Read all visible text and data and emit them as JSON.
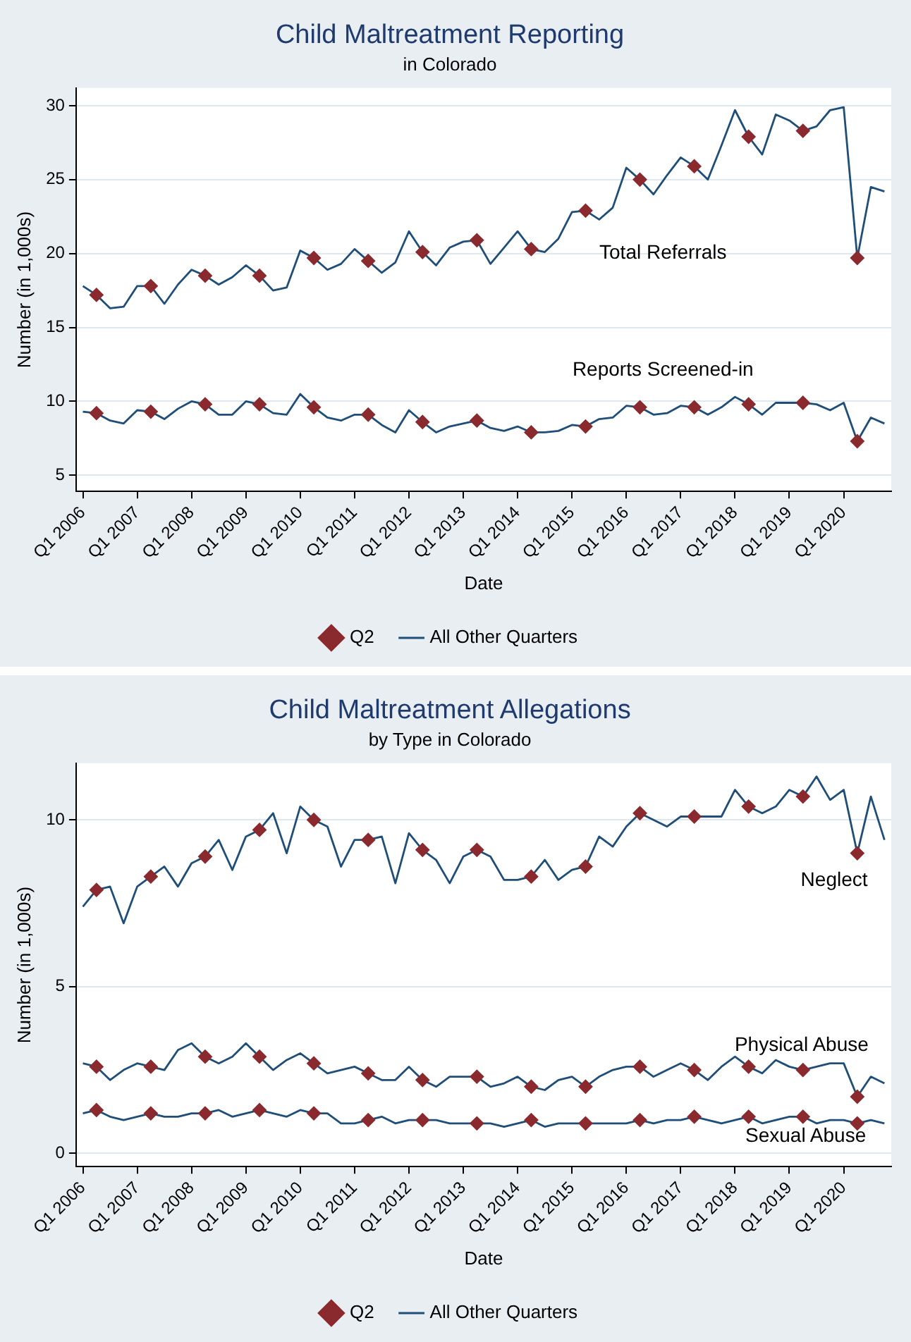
{
  "chart_data": [
    {
      "type": "line",
      "title": "Child Maltreatment Reporting",
      "subtitle": "in Colorado",
      "xlabel": "Date",
      "ylabel": "Number (in 1,000s)",
      "categories": [
        "Q1 2006",
        null,
        null,
        null,
        "Q1 2007",
        null,
        null,
        null,
        "Q1 2008",
        null,
        null,
        null,
        "Q1 2009",
        null,
        null,
        null,
        "Q1 2010",
        null,
        null,
        null,
        "Q1 2011",
        null,
        null,
        null,
        "Q1 2012",
        null,
        null,
        null,
        "Q1 2013",
        null,
        null,
        null,
        "Q1 2014",
        null,
        null,
        null,
        "Q1 2015",
        null,
        null,
        null,
        "Q1 2016",
        null,
        null,
        null,
        "Q1 2017",
        null,
        null,
        null,
        "Q1 2018",
        null,
        null,
        null,
        "Q1 2019",
        null,
        null,
        null,
        "Q1 2020",
        null,
        null,
        null
      ],
      "series": [
        {
          "name": "All Other Quarters",
          "color": "#1f4e79",
          "marker": "none",
          "values": [
            17.8,
            17.2,
            16.3,
            16.4,
            17.8,
            17.8,
            16.6,
            17.9,
            18.9,
            18.5,
            17.9,
            18.4,
            19.2,
            18.5,
            17.5,
            17.7,
            20.2,
            19.7,
            18.9,
            19.3,
            20.3,
            19.5,
            18.7,
            19.4,
            21.5,
            20.1,
            19.2,
            20.4,
            20.8,
            20.9,
            19.3,
            20.4,
            21.5,
            20.3,
            20.1,
            21.0,
            22.8,
            22.9,
            22.3,
            23.1,
            25.8,
            25.0,
            24.0,
            25.3,
            26.5,
            25.9,
            25.0,
            27.3,
            29.7,
            27.9,
            26.7,
            29.4,
            29.0,
            28.3,
            28.6,
            29.7,
            29.9,
            19.7,
            24.5,
            24.2
          ]
        },
        {
          "color": "#1f4e79",
          "marker": "none",
          "values": [
            9.3,
            9.2,
            8.7,
            8.5,
            9.4,
            9.3,
            8.8,
            9.5,
            10.0,
            9.8,
            9.1,
            9.1,
            10.0,
            9.8,
            9.2,
            9.1,
            10.5,
            9.6,
            8.9,
            8.7,
            9.1,
            9.1,
            8.4,
            7.9,
            9.4,
            8.6,
            7.9,
            8.3,
            8.5,
            8.7,
            8.2,
            8.0,
            8.3,
            7.9,
            7.9,
            8.0,
            8.4,
            8.3,
            8.8,
            8.9,
            9.7,
            9.6,
            9.1,
            9.2,
            9.7,
            9.6,
            9.1,
            9.6,
            10.3,
            9.8,
            9.1,
            9.9,
            9.9,
            9.9,
            9.8,
            9.4,
            9.9,
            7.3,
            8.9,
            8.5
          ]
        },
        {
          "type": "scatter",
          "name": "Q2",
          "color": "#8b2a2e",
          "marker": "diamond",
          "values": [
            null,
            17.2,
            null,
            null,
            null,
            17.8,
            null,
            null,
            null,
            18.5,
            null,
            null,
            null,
            18.5,
            null,
            null,
            null,
            19.7,
            null,
            null,
            null,
            19.5,
            null,
            null,
            null,
            20.1,
            null,
            null,
            null,
            20.9,
            null,
            null,
            null,
            20.3,
            null,
            null,
            null,
            22.9,
            null,
            null,
            null,
            25.0,
            null,
            null,
            null,
            25.9,
            null,
            null,
            null,
            27.9,
            null,
            null,
            null,
            28.3,
            null,
            null,
            null,
            19.7,
            null,
            null
          ]
        },
        {
          "type": "scatter",
          "color": "#8b2a2e",
          "marker": "diamond",
          "values": [
            null,
            9.2,
            null,
            null,
            null,
            9.3,
            null,
            null,
            null,
            9.8,
            null,
            null,
            null,
            9.8,
            null,
            null,
            null,
            9.6,
            null,
            null,
            null,
            9.1,
            null,
            null,
            null,
            8.6,
            null,
            null,
            null,
            8.7,
            null,
            null,
            null,
            7.9,
            null,
            null,
            null,
            8.3,
            null,
            null,
            null,
            9.6,
            null,
            null,
            null,
            9.6,
            null,
            null,
            null,
            9.8,
            null,
            null,
            null,
            9.9,
            null,
            null,
            null,
            7.3,
            null,
            null
          ]
        }
      ],
      "ylim": [
        3.9,
        31.2
      ],
      "yticks": [
        5,
        10,
        15,
        20,
        25,
        30
      ],
      "grid": "y",
      "legend": "bottom",
      "annotations": [
        "Total Referrals",
        "Reports Screened-in"
      ]
    },
    {
      "type": "line",
      "title": "Child Maltreatment Allegations",
      "subtitle": "by Type in Colorado",
      "xlabel": "Date",
      "ylabel": "Number (in 1,000s)",
      "categories": [
        "Q1 2006",
        null,
        null,
        null,
        "Q1 2007",
        null,
        null,
        null,
        "Q1 2008",
        null,
        null,
        null,
        "Q1 2009",
        null,
        null,
        null,
        "Q1 2010",
        null,
        null,
        null,
        "Q1 2011",
        null,
        null,
        null,
        "Q1 2012",
        null,
        null,
        null,
        "Q1 2013",
        null,
        null,
        null,
        "Q1 2014",
        null,
        null,
        null,
        "Q1 2015",
        null,
        null,
        null,
        "Q1 2016",
        null,
        null,
        null,
        "Q1 2017",
        null,
        null,
        null,
        "Q1 2018",
        null,
        null,
        null,
        "Q1 2019",
        null,
        null,
        null,
        "Q1 2020",
        null,
        null,
        null
      ],
      "series": [
        {
          "name": "All Other Quarters",
          "color": "#1f4e79",
          "marker": "none",
          "values": [
            7.4,
            7.9,
            8.0,
            6.9,
            8.0,
            8.3,
            8.6,
            8.0,
            8.7,
            8.9,
            9.4,
            8.5,
            9.5,
            9.7,
            10.2,
            9.0,
            10.4,
            10.0,
            9.8,
            8.6,
            9.4,
            9.4,
            9.5,
            8.1,
            9.6,
            9.1,
            8.8,
            8.1,
            8.9,
            9.1,
            8.9,
            8.2,
            8.2,
            8.3,
            8.8,
            8.2,
            8.5,
            8.6,
            9.5,
            9.2,
            9.8,
            10.2,
            10.0,
            9.8,
            10.1,
            10.1,
            10.1,
            10.1,
            10.9,
            10.4,
            10.2,
            10.4,
            10.9,
            10.7,
            11.3,
            10.6,
            10.9,
            9.0,
            10.7,
            9.4
          ]
        },
        {
          "color": "#1f4e79",
          "marker": "none",
          "values": [
            2.7,
            2.6,
            2.2,
            2.5,
            2.7,
            2.6,
            2.5,
            3.1,
            3.3,
            2.9,
            2.7,
            2.9,
            3.3,
            2.9,
            2.5,
            2.8,
            3.0,
            2.7,
            2.4,
            2.5,
            2.6,
            2.4,
            2.2,
            2.2,
            2.6,
            2.2,
            2.0,
            2.3,
            2.3,
            2.3,
            2.0,
            2.1,
            2.3,
            2.0,
            1.9,
            2.2,
            2.3,
            2.0,
            2.3,
            2.5,
            2.6,
            2.6,
            2.3,
            2.5,
            2.7,
            2.5,
            2.2,
            2.6,
            2.9,
            2.6,
            2.4,
            2.8,
            2.6,
            2.5,
            2.6,
            2.7,
            2.7,
            1.7,
            2.3,
            2.1
          ]
        },
        {
          "color": "#1f4e79",
          "marker": "none",
          "values": [
            1.2,
            1.3,
            1.1,
            1.0,
            1.1,
            1.2,
            1.1,
            1.1,
            1.2,
            1.2,
            1.3,
            1.1,
            1.2,
            1.3,
            1.2,
            1.1,
            1.3,
            1.2,
            1.2,
            0.9,
            0.9,
            1.0,
            1.1,
            0.9,
            1.0,
            1.0,
            1.0,
            0.9,
            0.9,
            0.9,
            0.9,
            0.8,
            0.9,
            1.0,
            0.8,
            0.9,
            0.9,
            0.9,
            0.9,
            0.9,
            0.9,
            1.0,
            0.9,
            1.0,
            1.0,
            1.1,
            1.0,
            0.9,
            1.0,
            1.1,
            0.9,
            1.0,
            1.1,
            1.1,
            0.9,
            1.0,
            1.0,
            0.9,
            1.0,
            0.9
          ]
        },
        {
          "type": "scatter",
          "name": "Q2",
          "color": "#8b2a2e",
          "marker": "diamond",
          "values": [
            null,
            7.9,
            null,
            null,
            null,
            8.3,
            null,
            null,
            null,
            8.9,
            null,
            null,
            null,
            9.7,
            null,
            null,
            null,
            10.0,
            null,
            null,
            null,
            9.4,
            null,
            null,
            null,
            9.1,
            null,
            null,
            null,
            9.1,
            null,
            null,
            null,
            8.3,
            null,
            null,
            null,
            8.6,
            null,
            null,
            null,
            10.2,
            null,
            null,
            null,
            10.1,
            null,
            null,
            null,
            10.4,
            null,
            null,
            null,
            10.7,
            null,
            null,
            null,
            9.0,
            null,
            null
          ]
        },
        {
          "type": "scatter",
          "color": "#8b2a2e",
          "marker": "diamond",
          "values": [
            null,
            2.6,
            null,
            null,
            null,
            2.6,
            null,
            null,
            null,
            2.9,
            null,
            null,
            null,
            2.9,
            null,
            null,
            null,
            2.7,
            null,
            null,
            null,
            2.4,
            null,
            null,
            null,
            2.2,
            null,
            null,
            null,
            2.3,
            null,
            null,
            null,
            2.0,
            null,
            null,
            null,
            2.0,
            null,
            null,
            null,
            2.6,
            null,
            null,
            null,
            2.5,
            null,
            null,
            null,
            2.6,
            null,
            null,
            null,
            2.5,
            null,
            null,
            null,
            1.7,
            null,
            null
          ]
        },
        {
          "type": "scatter",
          "color": "#8b2a2e",
          "marker": "diamond",
          "values": [
            null,
            1.3,
            null,
            null,
            null,
            1.2,
            null,
            null,
            null,
            1.2,
            null,
            null,
            null,
            1.3,
            null,
            null,
            null,
            1.2,
            null,
            null,
            null,
            1.0,
            null,
            null,
            null,
            1.0,
            null,
            null,
            null,
            0.9,
            null,
            null,
            null,
            1.0,
            null,
            null,
            null,
            0.9,
            null,
            null,
            null,
            1.0,
            null,
            null,
            null,
            1.1,
            null,
            null,
            null,
            1.1,
            null,
            null,
            null,
            1.1,
            null,
            null,
            null,
            0.9,
            null,
            null
          ]
        }
      ],
      "ylim": [
        -0.4,
        11.7
      ],
      "yticks": [
        0,
        5,
        10
      ],
      "grid": "y",
      "legend": "bottom",
      "annotations": [
        "Neglect",
        "Physical Abuse",
        "Sexual Abuse"
      ]
    }
  ]
}
